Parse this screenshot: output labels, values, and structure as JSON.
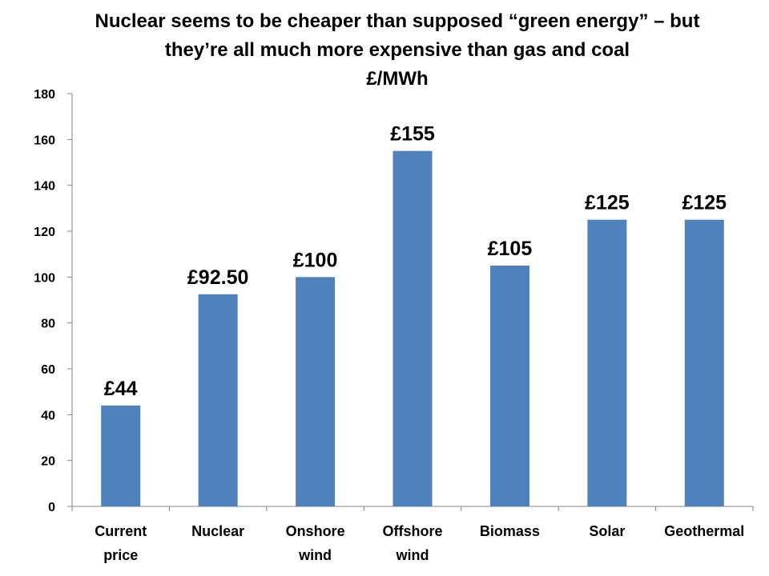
{
  "chart_data": {
    "type": "bar",
    "title_lines": [
      "Nuclear seems to be cheaper than supposed “green energy” – but",
      "they’re all much more expensive than gas and coal",
      "£/MWh"
    ],
    "categories": [
      [
        "Current",
        "price"
      ],
      [
        "Nuclear"
      ],
      [
        "Onshore",
        "wind"
      ],
      [
        "Offshore",
        "wind"
      ],
      [
        "Biomass"
      ],
      [
        "Solar"
      ],
      [
        "Geothermal"
      ]
    ],
    "values": [
      44,
      92.5,
      100,
      155,
      105,
      125,
      125
    ],
    "data_labels": [
      "£44",
      "£92.50",
      "£100",
      "£155",
      "£105",
      "£125",
      "£125"
    ],
    "ylim": [
      0,
      180
    ],
    "yticks": [
      0,
      20,
      40,
      60,
      80,
      100,
      120,
      140,
      160,
      180
    ],
    "grid": false,
    "legend": "none",
    "bar_color": "#4F81BD",
    "axis_color": "#868686"
  }
}
